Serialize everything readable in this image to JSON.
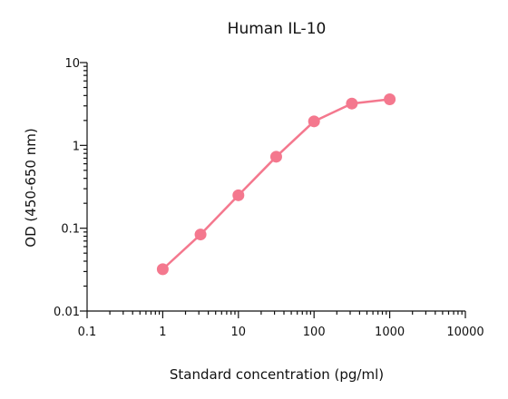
{
  "chart_data": {
    "type": "scatter",
    "title": "Human IL-10",
    "xlabel": "Standard concentration (pg/ml)",
    "ylabel": "OD (450-650 nm)",
    "xscale": "log",
    "yscale": "log",
    "xlim": [
      0.1,
      10000
    ],
    "ylim": [
      0.01,
      10
    ],
    "xticks": [
      0.1,
      1,
      10,
      100,
      1000,
      10000
    ],
    "xtick_labels": [
      "0.1",
      "1",
      "10",
      "100",
      "1000",
      "10000"
    ],
    "yticks": [
      0.01,
      0.1,
      1,
      10
    ],
    "ytick_labels": [
      "0.01",
      "0.1",
      "1",
      "10"
    ],
    "grid": false,
    "series": [
      {
        "x": [
          1,
          3.16,
          10,
          31.6,
          100,
          316,
          1000
        ],
        "y": [
          0.032,
          0.084,
          0.25,
          0.73,
          1.95,
          3.2,
          3.6
        ],
        "color": "#F4788E",
        "connected": true
      }
    ]
  }
}
